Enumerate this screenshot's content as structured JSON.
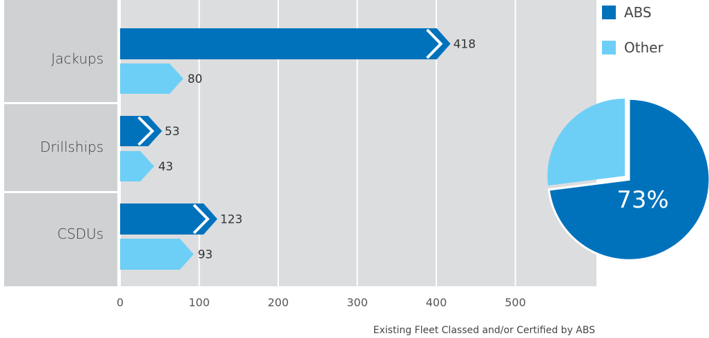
{
  "chart_data": {
    "type": "bar",
    "orientation": "horizontal",
    "categories": [
      "Jackups",
      "Drillships",
      "CSDUs"
    ],
    "series": [
      {
        "name": "ABS",
        "values": [
          418,
          53,
          123
        ],
        "color": "#0072bc"
      },
      {
        "name": "Other",
        "values": [
          80,
          43,
          93
        ],
        "color": "#6dcff6"
      }
    ],
    "xlabel": "Existing Fleet Classed and/or Certified by ABS",
    "xlim": [
      0,
      600
    ],
    "xticks": [
      "0",
      "100",
      "200",
      "300",
      "400",
      "500"
    ],
    "grid": true,
    "legend": "top-right",
    "pie": {
      "values": [
        73,
        27
      ],
      "colors": [
        "#0072bc",
        "#6dcff6"
      ],
      "label": "73%"
    }
  }
}
